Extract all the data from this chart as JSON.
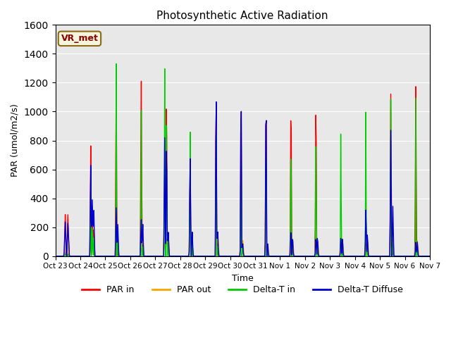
{
  "title": "Photosynthetic Active Radiation",
  "ylabel": "PAR (umol/m2/s)",
  "xlabel": "Time",
  "ylim": [
    0,
    1600
  ],
  "background_color": "#e8e8e8",
  "annotation_text": "VR_met",
  "annotation_color": "#8B0000",
  "annotation_bg": "#f5f5dc",
  "annotation_border": "#8B6914",
  "xtick_labels": [
    "Oct 23",
    "Oct 24",
    "Oct 25",
    "Oct 26",
    "Oct 27",
    "Oct 28",
    "Oct 29",
    "Oct 30",
    "Oct 31",
    "Nov 1",
    "Nov 2",
    "Nov 3",
    "Nov 4",
    "Nov 5",
    "Nov 6",
    "Nov 7"
  ],
  "legend": [
    {
      "label": "PAR in",
      "color": "#ff0000"
    },
    {
      "label": "PAR out",
      "color": "#ffa500"
    },
    {
      "label": "Delta-T in",
      "color": "#00cc00"
    },
    {
      "label": "Delta-T Diffuse",
      "color": "#0000cd"
    }
  ],
  "line_width": 1.0,
  "total_days": 15
}
